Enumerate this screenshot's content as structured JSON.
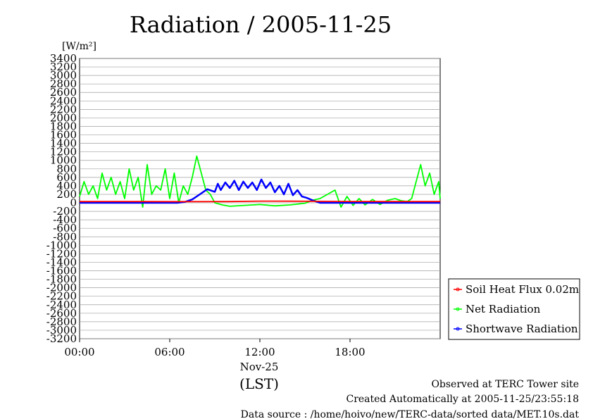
{
  "chart_data": {
    "type": "line",
    "title": "Radiation / 2005-11-25",
    "ylabel": "[W/m²]",
    "ylim": [
      -3200,
      3400
    ],
    "yticks": [
      3400,
      3200,
      3000,
      2800,
      2600,
      2400,
      2200,
      2000,
      1800,
      1600,
      1400,
      1200,
      1000,
      800,
      600,
      400,
      200,
      0,
      -200,
      -400,
      -600,
      -800,
      -1000,
      -1200,
      -1400,
      -1600,
      -1800,
      -2000,
      -2200,
      -2400,
      -2600,
      -2800,
      -3000,
      -3200
    ],
    "xlim_hours": [
      0,
      24
    ],
    "xticks": [
      {
        "hour": 0,
        "label": "00:00"
      },
      {
        "hour": 6,
        "label": "06:00"
      },
      {
        "hour": 12,
        "label": "12:00"
      },
      {
        "hour": 18,
        "label": "18:00"
      }
    ],
    "xdate_label": "Nov-25",
    "xlabel": "(LST)",
    "grid": true,
    "legend_position": "right",
    "series": [
      {
        "name": "Soil Heat Flux 0.02m",
        "color": "#ff0000",
        "x": [
          0,
          2,
          4,
          6,
          8,
          10,
          12,
          14,
          16,
          18,
          20,
          22,
          24
        ],
        "values": [
          30,
          32,
          30,
          28,
          28,
          30,
          40,
          38,
          35,
          32,
          30,
          30,
          30
        ]
      },
      {
        "name": "Net Radiation",
        "color": "#00ff00",
        "x": [
          0,
          0.3,
          0.6,
          0.9,
          1.2,
          1.5,
          1.8,
          2.1,
          2.4,
          2.7,
          3.0,
          3.3,
          3.6,
          3.9,
          4.2,
          4.5,
          4.8,
          5.1,
          5.4,
          5.7,
          6.0,
          6.3,
          6.6,
          6.9,
          7.2,
          7.5,
          7.8,
          8.1,
          8.4,
          8.7,
          9.0,
          9.5,
          10,
          11,
          12,
          13,
          14,
          15,
          15.5,
          16,
          16.5,
          17,
          17.4,
          17.8,
          18.2,
          18.6,
          19,
          19.5,
          20,
          20.5,
          21,
          21.4,
          21.8,
          22.1,
          22.4,
          22.7,
          23.0,
          23.3,
          23.6,
          23.9,
          24
        ],
        "values": [
          150,
          500,
          200,
          400,
          100,
          700,
          300,
          600,
          200,
          500,
          100,
          800,
          300,
          600,
          -100,
          900,
          200,
          400,
          300,
          800,
          100,
          700,
          0,
          400,
          200,
          600,
          1100,
          700,
          300,
          200,
          0,
          -50,
          -80,
          -60,
          -40,
          -70,
          -50,
          -10,
          60,
          100,
          200,
          300,
          -100,
          150,
          -60,
          100,
          -50,
          80,
          -40,
          60,
          100,
          50,
          30,
          100,
          500,
          900,
          400,
          700,
          200,
          500,
          100
        ]
      },
      {
        "name": "Shortwave Radiation",
        "color": "#0000ff",
        "x": [
          0,
          6.5,
          7.0,
          7.5,
          8.0,
          8.5,
          9.0,
          9.2,
          9.4,
          9.7,
          10.0,
          10.3,
          10.6,
          10.9,
          11.2,
          11.5,
          11.8,
          12.1,
          12.4,
          12.7,
          13.0,
          13.3,
          13.6,
          13.9,
          14.2,
          14.5,
          14.8,
          15.1,
          15.5,
          16.0,
          24
        ],
        "values": [
          0,
          0,
          20,
          80,
          200,
          320,
          260,
          450,
          300,
          480,
          350,
          520,
          300,
          500,
          350,
          480,
          300,
          550,
          350,
          480,
          250,
          400,
          200,
          450,
          180,
          300,
          150,
          120,
          60,
          0,
          0
        ]
      }
    ],
    "annotations": [
      "Observed at TERC Tower site",
      "Created Automatically at 2005-11-25/23:55:18",
      "Data source : /home/hoivo/new/TERC-data/sorted  data/MET.10s.dat"
    ]
  }
}
